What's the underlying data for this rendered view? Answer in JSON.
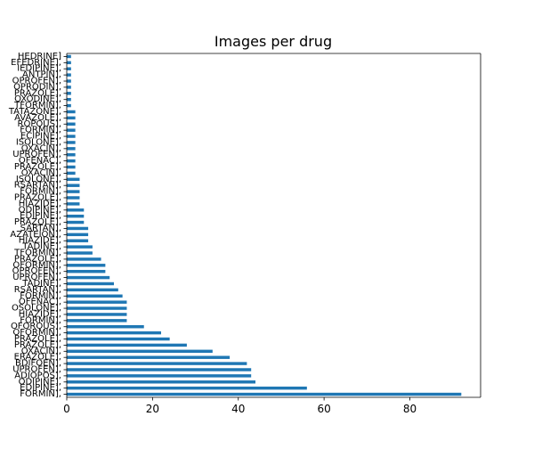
{
  "chart_data": {
    "type": "bar",
    "orientation": "horizontal",
    "title": "Images per drug",
    "xlabel": "",
    "ylabel": "",
    "xlim": [
      0,
      96.5
    ],
    "xticks": [
      0,
      20,
      40,
      60,
      80
    ],
    "grid": false,
    "legend": "none",
    "bar_color": "#1f77b4",
    "categories": [
      "FORMIN],",
      "EDIPINE],",
      "ODIPINE],",
      "ADIOPOS],",
      "UPROFEN],",
      "BDIFOEN],",
      "ERAZOLE],",
      "OXACIN],",
      "PRAZOLE],",
      "PRAZOLE],",
      "OFORMIN],",
      "OFOROUS],",
      "FORMIN],",
      "HIAZIDE],",
      "OSOLONE],",
      "OFENAC],",
      "FORMIN],",
      "RSARTAN],",
      "TADINE],",
      "UPROFEN],",
      "OPROFEN],",
      "OFORMIN],",
      "PRAZOLE],",
      "TFORMIN],",
      "TADINE],",
      "HIAZIDE],",
      "AZATEION],",
      "SARTAN],",
      "PRAZOLE],",
      "EDIPINE],",
      "ODIPINE],",
      "HIAZIDE],",
      "PRAZOLE],",
      "FORMIN],",
      "RSARTAN],",
      "ISOLONE],",
      "OXACIN],",
      "PRAZOLE],",
      "OFENAC],",
      "UPROFEN],",
      "OXACIN],",
      "ISOLONE],",
      "ECIPINE],",
      "FORMIN],",
      "ROPOUS],",
      "AVAZOLE],",
      "TATAZONE],",
      "TFORMIN],",
      "OXODINE],",
      "PRAZOLE],",
      "OPRODIN],",
      "OPROFEN],",
      "ANTPIN],",
      "IEDIPINE],",
      "EFEDRINE],",
      "HEDRINE]"
    ],
    "values": [
      92,
      56,
      44,
      43,
      43,
      42,
      38,
      34,
      28,
      24,
      22,
      18,
      14,
      14,
      14,
      14,
      13,
      12,
      11,
      10,
      9,
      9,
      8,
      6,
      6,
      5,
      5,
      5,
      4,
      4,
      4,
      3,
      3,
      3,
      3,
      3,
      2,
      2,
      2,
      2,
      2,
      2,
      2,
      2,
      2,
      2,
      2,
      1,
      1,
      1,
      1,
      1,
      1,
      1,
      1,
      1
    ]
  }
}
